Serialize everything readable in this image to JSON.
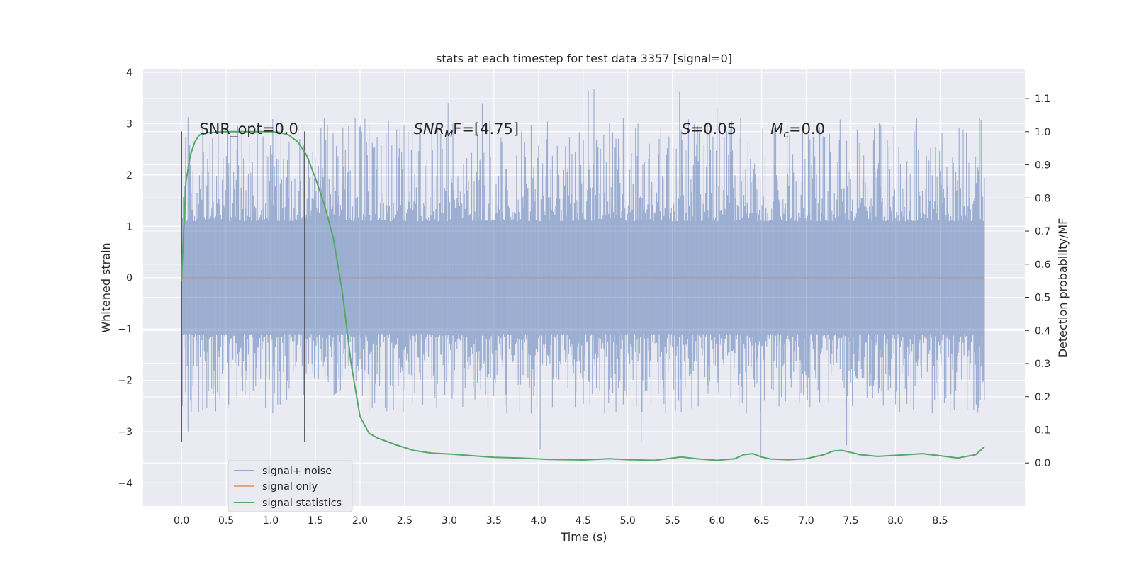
{
  "chart_data": {
    "type": "line",
    "title": "stats at each timestep for test data 3357 [signal=0]",
    "xlabel": "Time (s)",
    "ylabel_left": "Whitened strain",
    "ylabel_right": "Detection probability/MF",
    "xlim": [
      -0.43,
      9.45
    ],
    "ylim_left": [
      -4.45,
      4.07
    ],
    "ylim_right": [
      -0.13,
      1.19
    ],
    "x_ticks": [
      "0.0",
      "0.5",
      "1.0",
      "1.5",
      "2.0",
      "2.5",
      "3.0",
      "3.5",
      "4.0",
      "4.5",
      "5.0",
      "5.5",
      "6.0",
      "6.5",
      "7.0",
      "7.5",
      "8.0",
      "8.5"
    ],
    "y_left_ticks": [
      "4",
      "3",
      "2",
      "1",
      "0",
      "−1",
      "−2",
      "−3",
      "−4"
    ],
    "y_right_ticks": [
      "1.1",
      "1.0",
      "0.9",
      "0.8",
      "0.7",
      "0.6",
      "0.5",
      "0.4",
      "0.3",
      "0.2",
      "0.1",
      "0.0"
    ],
    "grid": true,
    "legend_position": "lower-left",
    "series": [
      {
        "name": "signal+ noise",
        "color": "#4c72b0",
        "kind": "noise",
        "x_range": [
          0.0,
          9.0
        ],
        "band_core": [
          -1.1,
          1.1
        ],
        "extreme_range": [
          -3.6,
          3.7
        ]
      },
      {
        "name": "signal only",
        "color": "#dd8452",
        "kind": "line",
        "x": [
          0.0,
          9.0
        ],
        "y": [
          0.0,
          0.0
        ]
      },
      {
        "name": "signal statistics",
        "color": "#55a868",
        "kind": "line",
        "axis": "right",
        "x": [
          0.0,
          0.05,
          0.1,
          0.15,
          0.2,
          0.3,
          0.5,
          0.8,
          1.0,
          1.1,
          1.2,
          1.3,
          1.4,
          1.5,
          1.6,
          1.7,
          1.8,
          1.9,
          2.0,
          2.1,
          2.2,
          2.4,
          2.6,
          2.8,
          3.0,
          3.3,
          3.5,
          3.8,
          4.1,
          4.5,
          4.8,
          5.0,
          5.3,
          5.6,
          5.8,
          6.0,
          6.2,
          6.3,
          6.4,
          6.5,
          6.6,
          6.8,
          7.0,
          7.2,
          7.3,
          7.4,
          7.5,
          7.6,
          7.8,
          8.0,
          8.3,
          8.5,
          8.7,
          8.9,
          9.0
        ],
        "y": [
          0.55,
          0.85,
          0.93,
          0.97,
          0.99,
          0.997,
          1.0,
          1.0,
          1.0,
          0.998,
          0.99,
          0.97,
          0.93,
          0.86,
          0.78,
          0.68,
          0.52,
          0.3,
          0.14,
          0.09,
          0.075,
          0.055,
          0.038,
          0.03,
          0.027,
          0.021,
          0.017,
          0.015,
          0.011,
          0.009,
          0.013,
          0.01,
          0.008,
          0.018,
          0.012,
          0.008,
          0.013,
          0.025,
          0.028,
          0.018,
          0.012,
          0.01,
          0.013,
          0.025,
          0.036,
          0.038,
          0.032,
          0.025,
          0.02,
          0.023,
          0.028,
          0.022,
          0.015,
          0.025,
          0.05
        ]
      }
    ],
    "vlines": [
      {
        "x": 0.0,
        "y_range": [
          -3.2,
          2.85
        ],
        "color": "#555555"
      },
      {
        "x": 1.38,
        "y_range": [
          -3.2,
          2.85
        ],
        "color": "#555555"
      }
    ],
    "annotations": [
      {
        "kind": "plain",
        "text": "SNR_opt=0.0",
        "x": 0.2,
        "y": 2.8
      },
      {
        "kind": "sub",
        "main": "SNR",
        "sub": "M",
        "rest": "F=[4.75]",
        "x": 2.6,
        "y": 2.8
      },
      {
        "kind": "italic",
        "main": "S",
        "rest": "=0.05",
        "x": 5.6,
        "y": 2.8
      },
      {
        "kind": "sub",
        "main": "M",
        "sub": "c",
        "rest": "=0.0",
        "x": 6.6,
        "y": 2.8
      }
    ]
  }
}
